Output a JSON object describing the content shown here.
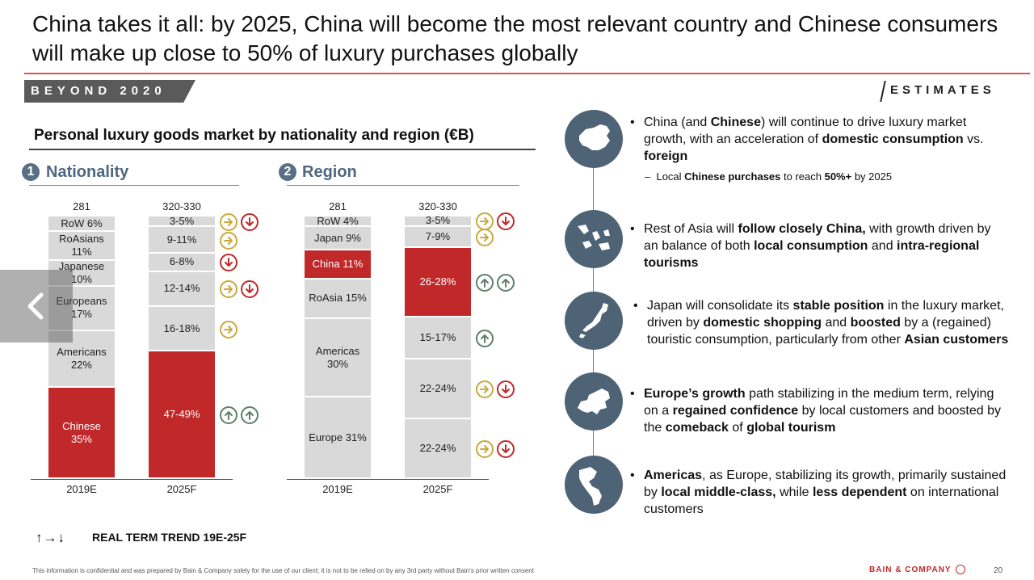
{
  "header": {
    "title": "China takes it all: by 2025, China will become the most relevant country and Chinese consumers will make up close to 50% of luxury purchases globally",
    "banner": "BEYOND 2020",
    "estimates": "ESTIMATES"
  },
  "colors": {
    "accent_red": "#c0282a",
    "bar_gray": "#d9d9d9",
    "slate": "#4f6377",
    "gold": "#c9a93a",
    "green": "#5e7d6b"
  },
  "chart_title": "Personal luxury goods market by nationality and region (€B)",
  "chart_data": [
    {
      "type": "bar",
      "stacked": true,
      "section_number": "1",
      "section_title": "Nationality",
      "categories": [
        "2019E",
        "2025F"
      ],
      "totals": [
        "281",
        "320-330"
      ],
      "columns": [
        {
          "segments": [
            {
              "label": "RoW 6%",
              "value": 6,
              "highlight": false
            },
            {
              "label": "RoAsians 11%",
              "value": 11,
              "highlight": false
            },
            {
              "label": "Japanese 10%",
              "value": 10,
              "highlight": false
            },
            {
              "label": "Europeans 17%",
              "value": 17,
              "highlight": false
            },
            {
              "label": "Americans 22%",
              "value": 22,
              "highlight": false
            },
            {
              "label": "Chinese 35%",
              "value": 35,
              "highlight": true
            }
          ]
        },
        {
          "segments": [
            {
              "label": "3-5%",
              "value": 4,
              "highlight": false,
              "trend": [
                "right",
                "down"
              ]
            },
            {
              "label": "9-11%",
              "value": 10,
              "highlight": false,
              "trend": [
                "right"
              ]
            },
            {
              "label": "6-8%",
              "value": 7,
              "highlight": false,
              "trend": [
                "down"
              ]
            },
            {
              "label": "12-14%",
              "value": 13,
              "highlight": false,
              "trend": [
                "right",
                "down"
              ]
            },
            {
              "label": "16-18%",
              "value": 17,
              "highlight": false,
              "trend": [
                "right"
              ]
            },
            {
              "label": "47-49%",
              "value": 48,
              "highlight": true,
              "trend": [
                "up",
                "up"
              ]
            }
          ]
        }
      ]
    },
    {
      "type": "bar",
      "stacked": true,
      "section_number": "2",
      "section_title": "Region",
      "categories": [
        "2019E",
        "2025F"
      ],
      "totals": [
        "281",
        "320-330"
      ],
      "columns": [
        {
          "segments": [
            {
              "label": "RoW 4%",
              "value": 4,
              "highlight": false
            },
            {
              "label": "Japan 9%",
              "value": 9,
              "highlight": false
            },
            {
              "label": "China 11%",
              "value": 11,
              "highlight": true
            },
            {
              "label": "RoAsia 15%",
              "value": 15,
              "highlight": false
            },
            {
              "label": "Americas 30%",
              "value": 30,
              "highlight": false
            },
            {
              "label": "Europe 31%",
              "value": 31,
              "highlight": false
            }
          ]
        },
        {
          "segments": [
            {
              "label": "3-5%",
              "value": 4,
              "highlight": false,
              "trend": [
                "right",
                "down"
              ]
            },
            {
              "label": "7-9%",
              "value": 8,
              "highlight": false,
              "trend": [
                "right"
              ]
            },
            {
              "label": "26-28%",
              "value": 27,
              "highlight": true,
              "trend": [
                "up",
                "up"
              ]
            },
            {
              "label": "15-17%",
              "value": 16,
              "highlight": false,
              "trend": [
                "up"
              ]
            },
            {
              "label": "22-24%",
              "value": 23,
              "highlight": false,
              "trend": [
                "right",
                "down"
              ]
            },
            {
              "label": "22-24%",
              "value": 23,
              "highlight": false,
              "trend": [
                "right",
                "down"
              ]
            }
          ]
        }
      ]
    }
  ],
  "legend": {
    "arrows": "↑→↓",
    "text": "REAL TERM TREND 19E-25F"
  },
  "bullets": [
    {
      "icon": "china-map-icon",
      "html": "China (and <b>Chinese</b>) will continue to drive luxury market growth, with an acceleration of <b>domestic consumption</b> vs. <b>foreign</b>",
      "sub": "Local <b>Chinese purchases</b> to reach <b>50%+</b> by 2025"
    },
    {
      "icon": "asia-map-icon",
      "html": "Rest of Asia will <b>follow closely China,</b> with growth driven by an balance of both <b>local consumption</b> and <b>intra-regional tourisms</b>"
    },
    {
      "icon": "japan-map-icon",
      "html": "Japan will consolidate its <b>stable position</b> in the luxury market, driven by <b>domestic shopping</b> and <b>boosted</b> by a (regained) touristic consumption, particularly from other <b>Asian customers</b>"
    },
    {
      "icon": "europe-map-icon",
      "html": "<b>Europe’s growth</b> path stabilizing in the medium term, relying on a <b>regained confidence</b> by local customers and boosted by the <b>comeback</b> of <b>global tourism</b>"
    },
    {
      "icon": "americas-map-icon",
      "html": "<b>Americas</b>, as Europe, stabilizing its growth, primarily sustained by <b>local middle-class,</b> while <b>less dependent</b> on international customers"
    }
  ],
  "footer": {
    "note": "This information is confidential and was prepared by Bain & Company solely for the use of our client; it is not to be relied on by any 3rd party without Bain's prior written consent",
    "brand": "BAIN & COMPANY",
    "page": "20"
  }
}
